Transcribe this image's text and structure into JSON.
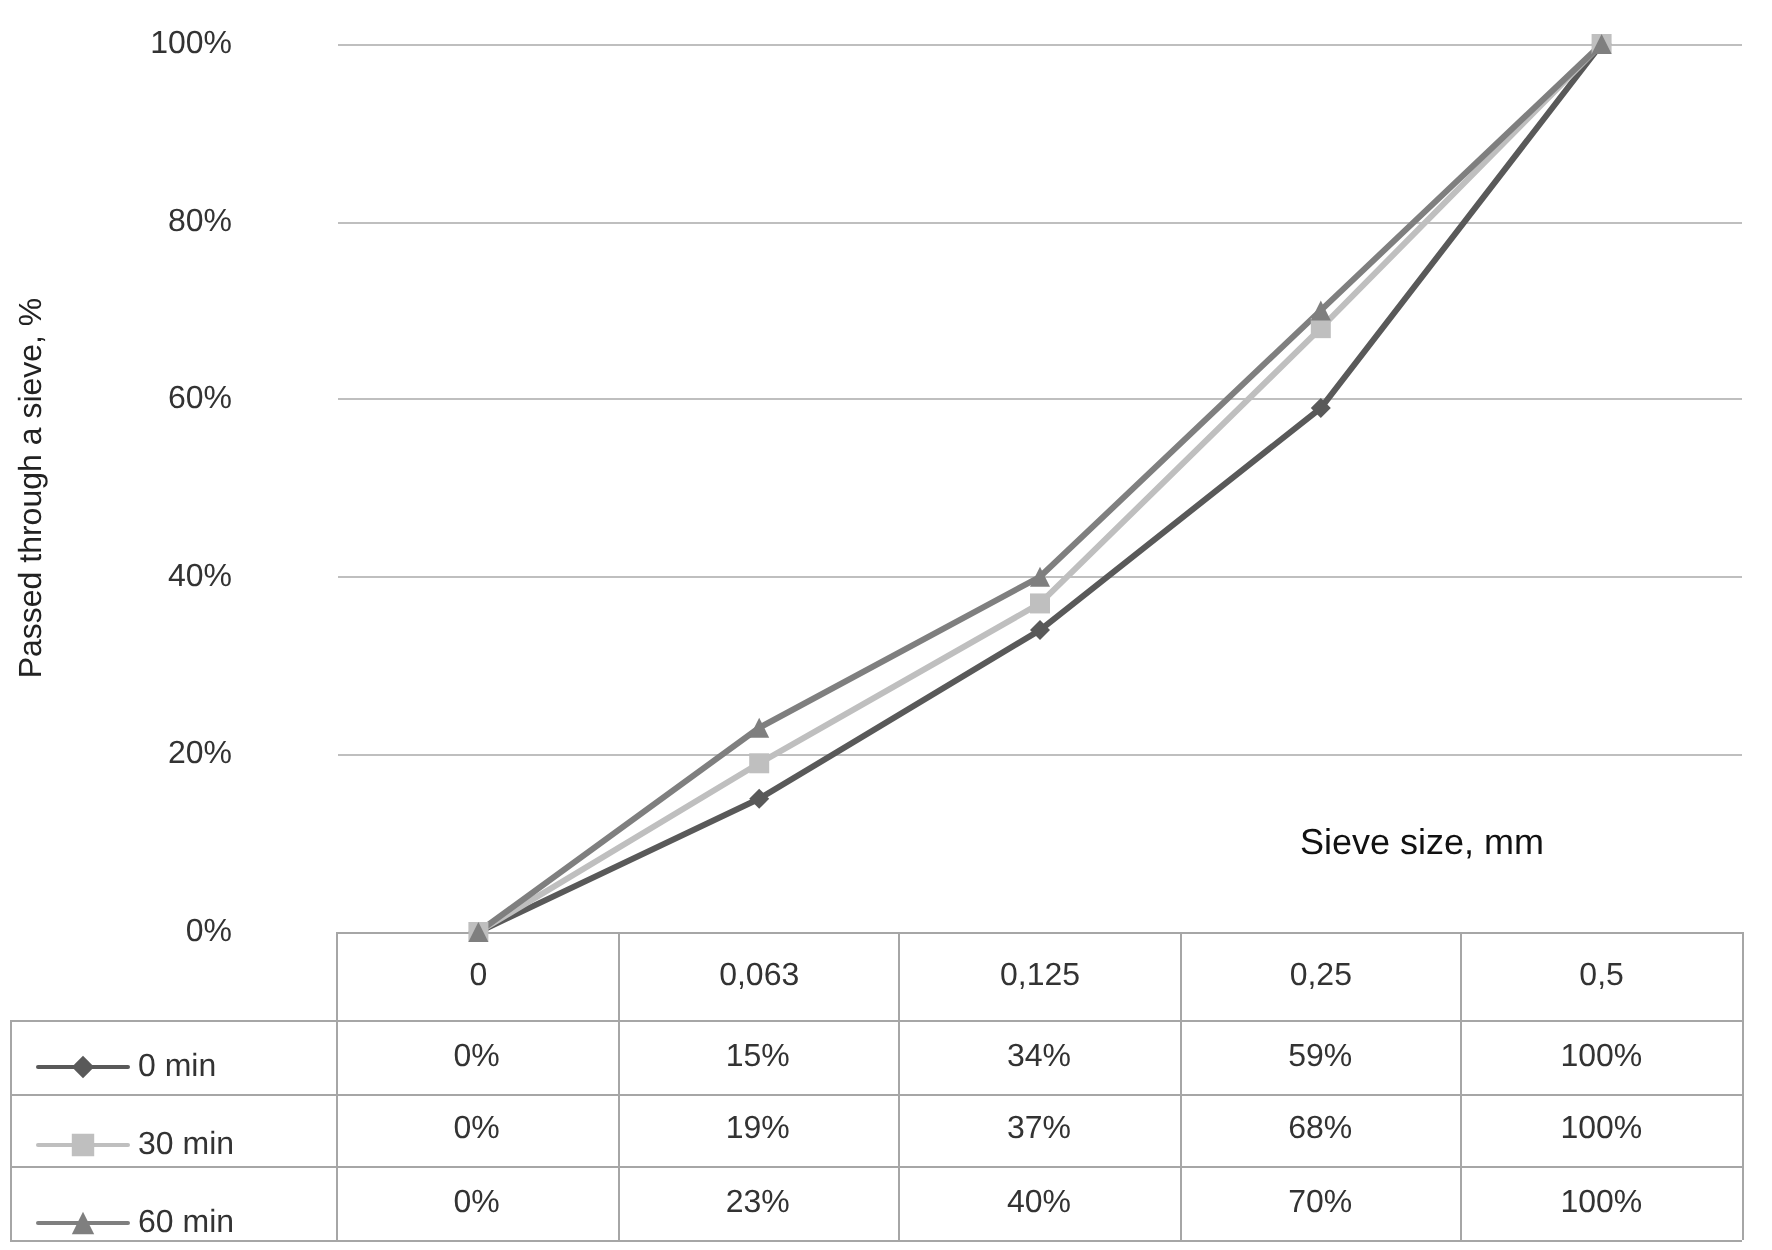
{
  "chart_data": {
    "type": "line",
    "xlabel": "Sieve size, mm",
    "ylabel": "Passed through a sieve, %",
    "categories": [
      "0",
      "0,063",
      "0,125",
      "0,25",
      "0,5"
    ],
    "series": [
      {
        "name": "0 min",
        "color": "#595959",
        "marker": "diamond",
        "values": [
          0,
          15,
          34,
          59,
          100
        ],
        "value_labels": [
          "0%",
          "15%",
          "34%",
          "59%",
          "100%"
        ]
      },
      {
        "name": "30 min",
        "color": "#bfbfbf",
        "marker": "square",
        "values": [
          0,
          19,
          37,
          68,
          100
        ],
        "value_labels": [
          "0%",
          "19%",
          "37%",
          "68%",
          "100%"
        ]
      },
      {
        "name": "60 min",
        "color": "#7f7f7f",
        "marker": "triangle",
        "values": [
          0,
          23,
          40,
          70,
          100
        ],
        "value_labels": [
          "0%",
          "23%",
          "40%",
          "70%",
          "100%"
        ]
      }
    ],
    "ylim": [
      0,
      100
    ],
    "yticks": [
      {
        "value": 0,
        "label": "0%"
      },
      {
        "value": 20,
        "label": "20%"
      },
      {
        "value": 40,
        "label": "40%"
      },
      {
        "value": 60,
        "label": "60%"
      },
      {
        "value": 80,
        "label": "80%"
      },
      {
        "value": 100,
        "label": "100%"
      }
    ],
    "grid": "y",
    "legend": "bottom left",
    "line_style": "solid"
  }
}
